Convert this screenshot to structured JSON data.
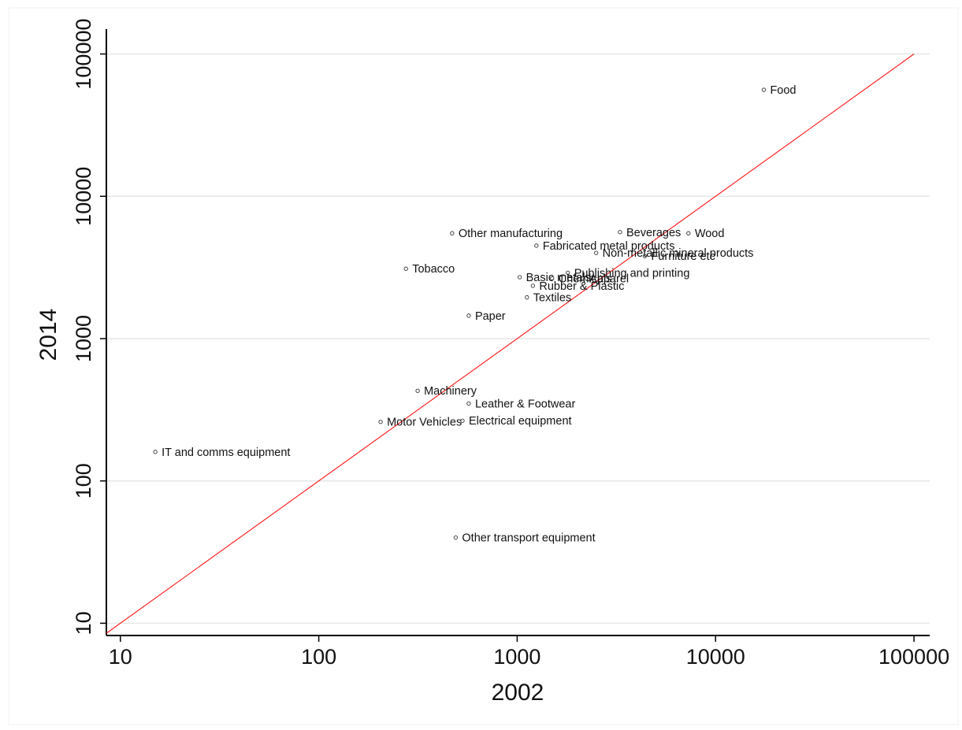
{
  "chart_data": {
    "type": "scatter",
    "xlabel": "2002",
    "ylabel": "2014",
    "x_scale": "log",
    "y_scale": "log",
    "xlim": [
      8.5,
      120000
    ],
    "ylim": [
      8.2,
      135000
    ],
    "x_ticks": [
      10,
      100,
      1000,
      10000,
      100000
    ],
    "y_ticks": [
      10,
      100,
      1000,
      10000,
      100000
    ],
    "x_tick_labels": [
      "10",
      "100",
      "1000",
      "10000",
      "100000"
    ],
    "y_tick_labels": [
      "10",
      "100",
      "1000",
      "10000",
      "100000"
    ],
    "grid": "horizontal",
    "legend": "none",
    "reference_line": {
      "type": "y=x",
      "color": "#ff0000"
    },
    "points": [
      {
        "label": "Food",
        "x": 17500,
        "y": 56000
      },
      {
        "label": "Beverages",
        "x": 3300,
        "y": 5600
      },
      {
        "label": "Wood",
        "x": 7300,
        "y": 5500
      },
      {
        "label": "Other manufacturing",
        "x": 470,
        "y": 5500
      },
      {
        "label": "Fabricated metal products",
        "x": 1250,
        "y": 4500
      },
      {
        "label": "Non-metallic mineral products",
        "x": 2500,
        "y": 4000
      },
      {
        "label": "Furniture etc",
        "x": 4400,
        "y": 3800
      },
      {
        "label": "Tobacco",
        "x": 275,
        "y": 3100
      },
      {
        "label": "Publishing and printing",
        "x": 1800,
        "y": 2900
      },
      {
        "label": "Basic metals",
        "x": 1030,
        "y": 2700
      },
      {
        "label": "Chemicals",
        "x": 1500,
        "y": 2650
      },
      {
        "label": "Apparel",
        "x": 2150,
        "y": 2650
      },
      {
        "label": "Rubber & Plastic",
        "x": 1200,
        "y": 2350
      },
      {
        "label": "Textiles",
        "x": 1120,
        "y": 1950
      },
      {
        "label": "Paper",
        "x": 570,
        "y": 1450
      },
      {
        "label": "Machinery",
        "x": 315,
        "y": 430
      },
      {
        "label": "Leather & Footwear",
        "x": 570,
        "y": 350
      },
      {
        "label": "Electrical equipment",
        "x": 530,
        "y": 265
      },
      {
        "label": "Motor Vehicles",
        "x": 205,
        "y": 260
      },
      {
        "label": "IT and comms equipment",
        "x": 15,
        "y": 160
      },
      {
        "label": "Other transport equipment",
        "x": 490,
        "y": 40
      }
    ]
  }
}
